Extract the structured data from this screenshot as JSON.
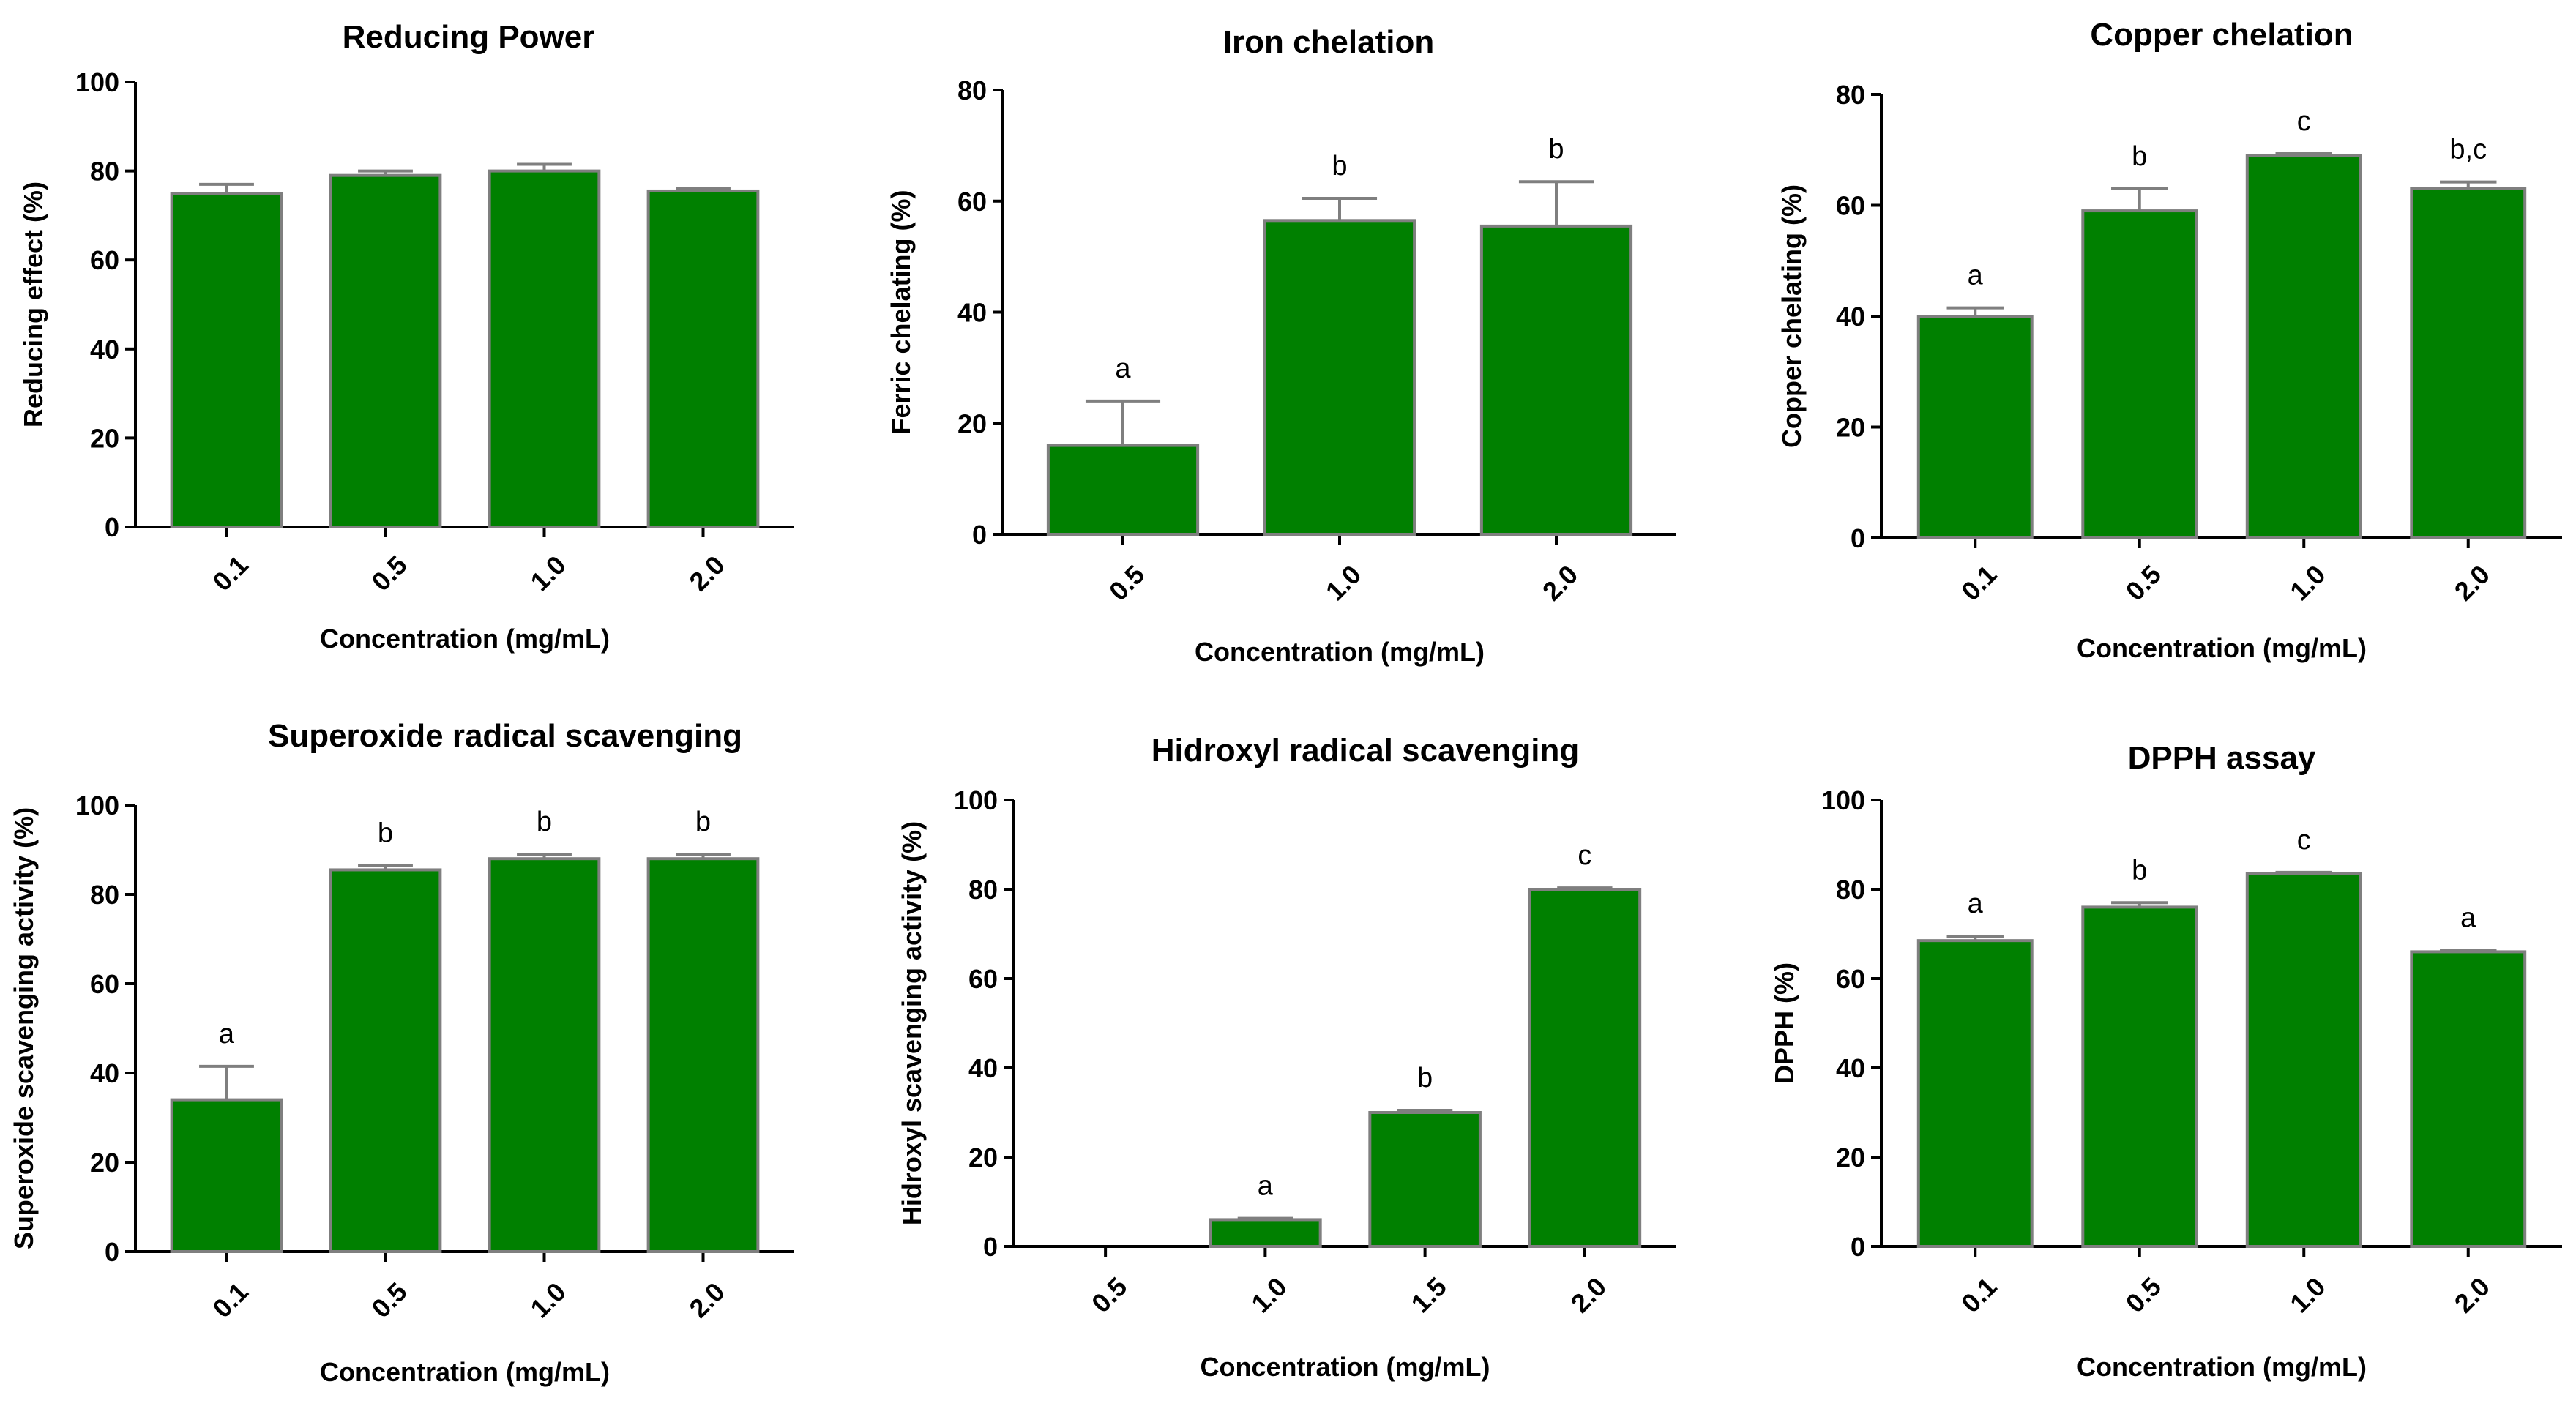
{
  "figure": {
    "colors": {
      "bar_fill": "#008000",
      "bar_stroke": "#7f7f7f",
      "error_bar": "#7f7f7f",
      "axis": "#000000",
      "background": "#ffffff"
    }
  },
  "chart_data": [
    {
      "type": "bar",
      "title": "Reducing Power",
      "xlabel": "Concentration (mg/mL)",
      "ylabel": "Reducing effect (%)",
      "ylim": [
        0,
        100
      ],
      "yticks": [
        0,
        20,
        40,
        60,
        80,
        100
      ],
      "categories": [
        "0.1",
        "0.5",
        "1.0",
        "2.0"
      ],
      "values": [
        75,
        79,
        80,
        75.5
      ],
      "errors": [
        2,
        1,
        1.5,
        0.5
      ],
      "labels": [
        "",
        "",
        "",
        ""
      ]
    },
    {
      "type": "bar",
      "title": "Iron chelation",
      "xlabel": "Concentration (mg/mL)",
      "ylabel": "Ferric chelating (%)",
      "ylim": [
        0,
        80
      ],
      "yticks": [
        0,
        20,
        40,
        60,
        80
      ],
      "categories": [
        "0.5",
        "1.0",
        "2.0"
      ],
      "values": [
        16,
        56.5,
        55.5
      ],
      "errors": [
        8,
        4,
        8
      ],
      "labels": [
        "a",
        "b",
        "b"
      ]
    },
    {
      "type": "bar",
      "title": "Copper chelation",
      "xlabel": "Concentration (mg/mL)",
      "ylabel": "Copper chelating (%)",
      "ylim": [
        0,
        80
      ],
      "yticks": [
        0,
        20,
        40,
        60,
        80
      ],
      "categories": [
        "0.1",
        "0.5",
        "1.0",
        "2.0"
      ],
      "values": [
        40,
        59,
        69,
        63
      ],
      "errors": [
        1.5,
        4,
        0.3,
        1.2
      ],
      "labels": [
        "a",
        "b",
        "c",
        "b,c"
      ]
    },
    {
      "type": "bar",
      "title": "Superoxide radical scavenging",
      "xlabel": "Concentration (mg/mL)",
      "ylabel": "Superoxide scavenging activity (%)",
      "ylim": [
        0,
        100
      ],
      "yticks": [
        0,
        20,
        40,
        60,
        80,
        100
      ],
      "categories": [
        "0.1",
        "0.5",
        "1.0",
        "2.0"
      ],
      "values": [
        34,
        85.5,
        88,
        88
      ],
      "errors": [
        7.5,
        1,
        1,
        1
      ],
      "labels": [
        "a",
        "b",
        "b",
        "b"
      ]
    },
    {
      "type": "bar",
      "title": "Hidroxyl radical scavenging",
      "xlabel": "Concentration (mg/mL)",
      "ylabel": "Hidroxyl scavenging activity (%)",
      "ylim": [
        0,
        100
      ],
      "yticks": [
        0,
        20,
        40,
        60,
        80,
        100
      ],
      "categories": [
        "0.5",
        "1.0",
        "1.5",
        "2.0"
      ],
      "values": [
        0,
        6,
        30,
        80
      ],
      "errors": [
        0,
        0.3,
        0.5,
        0.3
      ],
      "labels": [
        "",
        "a",
        "b",
        "c"
      ]
    },
    {
      "type": "bar",
      "title": "DPPH assay",
      "xlabel": "Concentration (mg/mL)",
      "ylabel": "DPPH (%)",
      "ylim": [
        0,
        100
      ],
      "yticks": [
        0,
        20,
        40,
        60,
        80,
        100
      ],
      "categories": [
        "0.1",
        "0.5",
        "1.0",
        "2.0"
      ],
      "values": [
        68.5,
        76,
        83.5,
        66
      ],
      "errors": [
        1,
        1,
        0.3,
        0.3
      ],
      "labels": [
        "a",
        "b",
        "c",
        "a"
      ]
    }
  ]
}
